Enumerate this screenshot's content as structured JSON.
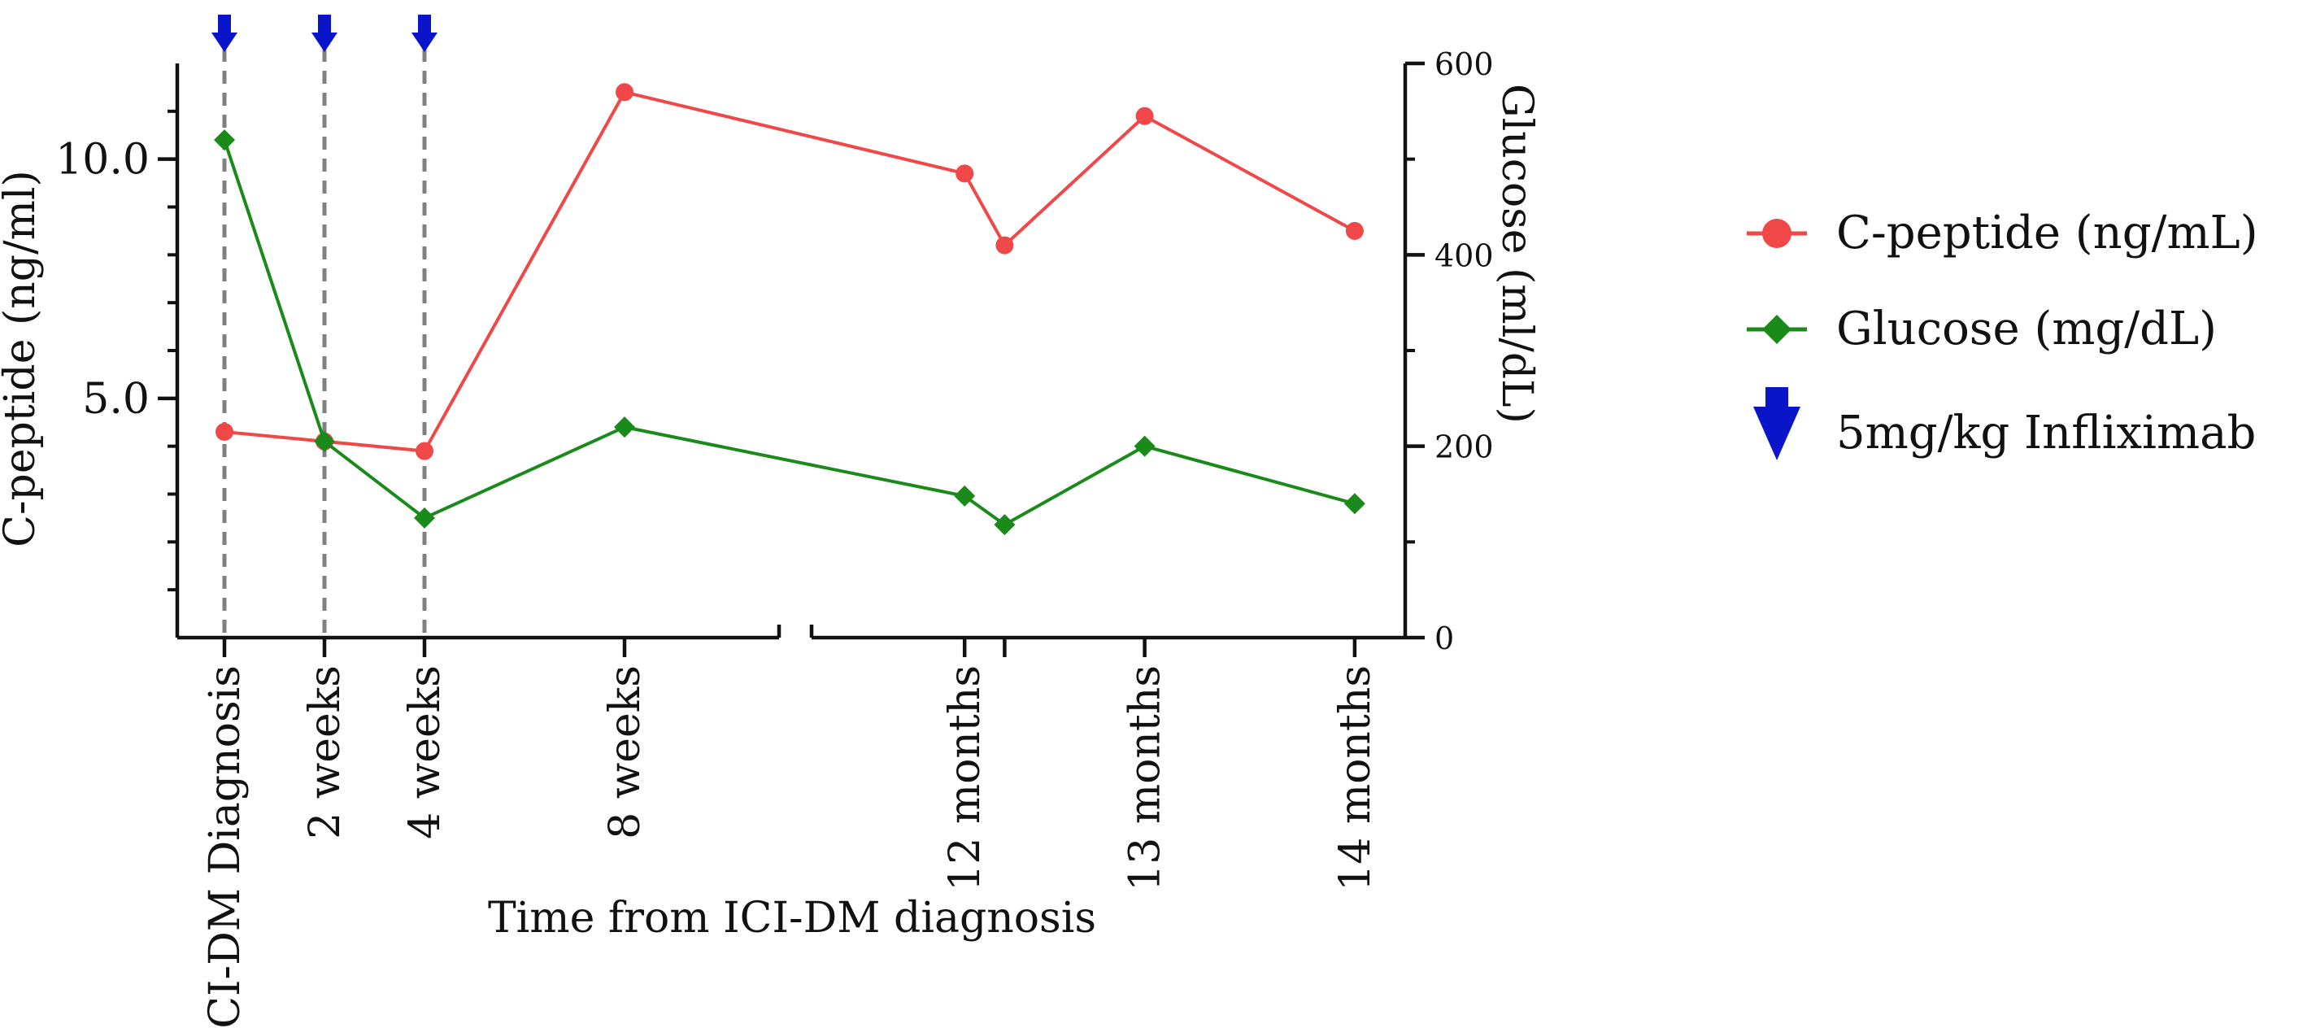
{
  "chart_data": {
    "type": "line",
    "xlabel": "Time from ICI-DM diagnosis",
    "ylabel_left": "C-peptide (ng/ml)",
    "ylabel_right": "Glucose (ml/dL)",
    "categories": [
      "ICI-DM Diagnosis",
      "2 weeks",
      "4 weeks",
      "8 weeks",
      "12 months",
      "",
      "13 months",
      "14 months"
    ],
    "x_positions": [
      0,
      0.5,
      1,
      2,
      3.7,
      3.9,
      4.6,
      5.65
    ],
    "x_axis_break_after": "8 weeks",
    "left_axis": {
      "ylim": [
        0,
        12
      ],
      "ticks": [
        5.0,
        10.0
      ],
      "tick_labels": [
        "5.0",
        "10.0"
      ],
      "minor_ticks": [
        1,
        2,
        3,
        4,
        6,
        7,
        8,
        9,
        11
      ]
    },
    "right_axis": {
      "ylim": [
        0,
        600
      ],
      "ticks": [
        0,
        200,
        400,
        600
      ],
      "tick_labels": [
        "0",
        "200",
        "400",
        "600"
      ],
      "minor_ticks": [
        100,
        300,
        500
      ]
    },
    "series": [
      {
        "name": "C-peptide (ng/mL)",
        "axis": "left",
        "color": "#f04848",
        "marker": "circle",
        "values": [
          4.3,
          4.1,
          3.9,
          11.4,
          9.7,
          8.2,
          10.9,
          8.5
        ]
      },
      {
        "name": "Glucose (mg/dL)",
        "axis": "right",
        "color": "#1a8a1a",
        "marker": "diamond",
        "values": [
          520,
          205,
          125,
          220,
          148,
          118,
          200,
          140
        ]
      }
    ],
    "annotations": {
      "name": "5mg/kg Infliximab",
      "color": "#0a14c8",
      "marker": "down-arrow",
      "at": [
        "ICI-DM Diagnosis",
        "2 weeks",
        "4 weeks"
      ]
    },
    "legend": "right",
    "grid": false
  }
}
